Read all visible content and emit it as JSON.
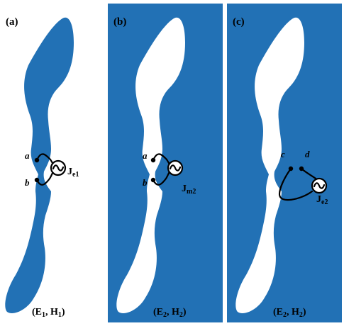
{
  "colors": {
    "metal": "#2271b5",
    "background": "#ffffff",
    "ink": "#000000"
  },
  "panels": [
    {
      "label": "(a)",
      "port_a": "a",
      "port_b": "b",
      "source_main": "J",
      "source_sub": "e1",
      "field_E": "E",
      "field_E_sub": "1",
      "field_H": "H",
      "field_H_sub": "1"
    },
    {
      "label": "(b)",
      "port_a": "a",
      "port_b": "b",
      "source_main": "J",
      "source_sub": "m2",
      "field_E": "E",
      "field_E_sub": "2",
      "field_H": "H",
      "field_H_sub": "2"
    },
    {
      "label": "(c)",
      "port_c": "c",
      "port_d": "d",
      "source_main": "J",
      "source_sub": "e2",
      "field_E": "E",
      "field_E_sub": "2",
      "field_H": "H",
      "field_H_sub": "2"
    }
  ]
}
